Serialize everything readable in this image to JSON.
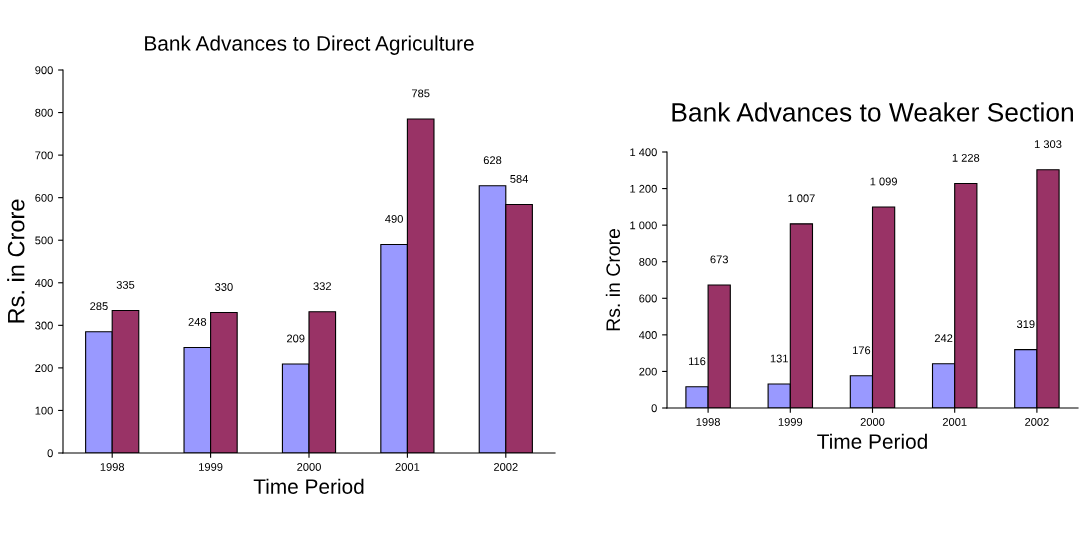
{
  "chart_data": [
    {
      "type": "bar",
      "title": "Bank Advances to Direct Agriculture",
      "xlabel": "Time Period",
      "ylabel": "Rs. in Crore",
      "categories": [
        "1998",
        "1999",
        "2000",
        "2001",
        "2002"
      ],
      "ylim": [
        0,
        900
      ],
      "yticks": [
        0,
        100,
        200,
        300,
        400,
        500,
        600,
        700,
        800,
        900
      ],
      "grid": false,
      "data_labels": true,
      "series": [
        {
          "color": "#9999ff",
          "values": [
            285,
            248,
            209,
            490,
            628
          ]
        },
        {
          "color": "#993366",
          "values": [
            335,
            330,
            332,
            785,
            584
          ]
        }
      ]
    },
    {
      "type": "bar",
      "title": "Bank Advances to Weaker Section",
      "xlabel": "Time Period",
      "ylabel": "Rs. in Crore",
      "categories": [
        "1998",
        "1999",
        "2000",
        "2001",
        "2002"
      ],
      "ylim": [
        0,
        1400
      ],
      "yticks": [
        0,
        200,
        400,
        600,
        800,
        {
          "value": 1000,
          "label": "1 000"
        },
        {
          "value": 1200,
          "label": "1 200"
        },
        {
          "value": 1400,
          "label": "1 400"
        }
      ],
      "grid": false,
      "series": [
        {
          "color": "#9999ff",
          "values": [
            116,
            131,
            176,
            242,
            319
          ],
          "value_labels": [
            "116",
            "131",
            "176",
            "242",
            "319"
          ]
        },
        {
          "color": "#993366",
          "values": [
            673,
            1007,
            1099,
            1228,
            1303
          ],
          "value_labels": [
            "673",
            "1 007",
            "1 099",
            "1 228",
            "1 303"
          ]
        }
      ]
    }
  ]
}
